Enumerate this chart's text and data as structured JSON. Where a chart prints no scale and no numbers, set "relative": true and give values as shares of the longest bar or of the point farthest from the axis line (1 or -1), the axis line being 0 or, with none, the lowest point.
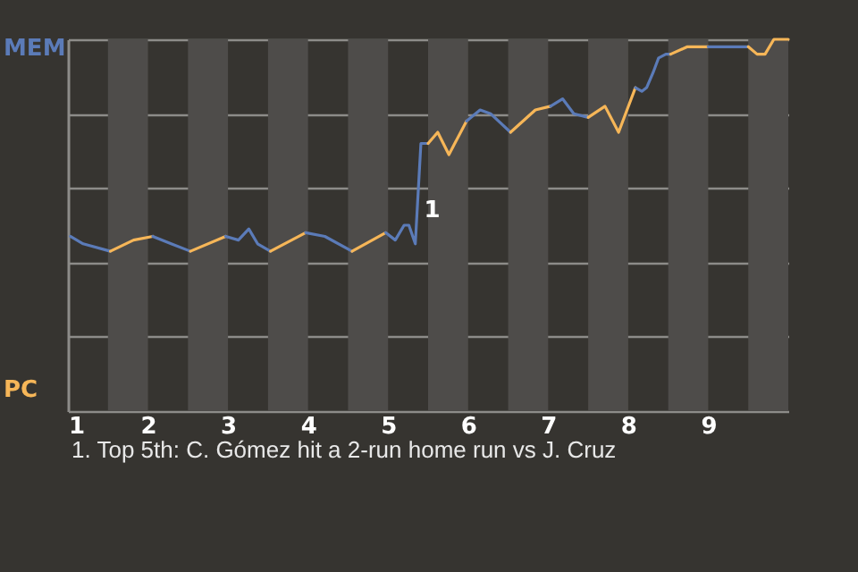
{
  "chart_data": {
    "type": "line",
    "series": [
      {
        "color": "#5b7bb8",
        "x": [
          1.03,
          1.19,
          1.53
        ],
        "values": [
          0.47,
          0.45,
          0.43
        ]
      },
      {
        "color": "#f6b658",
        "x": [
          1.53,
          1.82,
          2.06
        ],
        "values": [
          0.43,
          0.46,
          0.47
        ]
      },
      {
        "color": "#5b7bb8",
        "x": [
          2.06,
          2.29,
          2.53
        ],
        "values": [
          0.47,
          0.45,
          0.43
        ]
      },
      {
        "color": "#f6b658",
        "x": [
          2.53,
          2.97
        ],
        "values": [
          0.43,
          0.47
        ]
      },
      {
        "color": "#5b7bb8",
        "x": [
          2.97,
          3.13,
          3.26,
          3.37,
          3.53
        ],
        "values": [
          0.47,
          0.46,
          0.49,
          0.45,
          0.43
        ]
      },
      {
        "color": "#f6b658",
        "x": [
          3.53,
          3.97
        ],
        "values": [
          0.43,
          0.48
        ]
      },
      {
        "color": "#5b7bb8",
        "x": [
          3.97,
          4.21,
          4.55
        ],
        "values": [
          0.48,
          0.47,
          0.43
        ]
      },
      {
        "color": "#f6b658",
        "x": [
          4.55,
          4.97
        ],
        "values": [
          0.43,
          0.48
        ]
      },
      {
        "color": "#5b7bb8",
        "x": [
          4.97,
          5.09,
          5.2,
          5.26,
          5.34,
          5.41,
          5.5
        ],
        "values": [
          0.48,
          0.46,
          0.5,
          0.5,
          0.45,
          0.72,
          0.72
        ]
      },
      {
        "color": "#f6b658",
        "x": [
          5.5,
          5.62,
          5.76,
          5.98
        ],
        "values": [
          0.72,
          0.75,
          0.69,
          0.78
        ]
      },
      {
        "color": "#5b7bb8",
        "x": [
          5.98,
          6.15,
          6.28,
          6.53
        ],
        "values": [
          0.78,
          0.81,
          0.8,
          0.75
        ]
      },
      {
        "color": "#f6b658",
        "x": [
          6.53,
          6.84,
          7.03
        ],
        "values": [
          0.75,
          0.81,
          0.82
        ]
      },
      {
        "color": "#5b7bb8",
        "x": [
          7.03,
          7.18,
          7.32,
          7.5
        ],
        "values": [
          0.82,
          0.84,
          0.8,
          0.79
        ]
      },
      {
        "color": "#f6b658",
        "x": [
          7.5,
          7.71,
          7.88,
          8.09
        ],
        "values": [
          0.79,
          0.82,
          0.75,
          0.87
        ]
      },
      {
        "color": "#5b7bb8",
        "x": [
          8.09,
          8.17,
          8.23,
          8.31,
          8.38,
          8.47,
          8.53
        ],
        "values": [
          0.87,
          0.86,
          0.87,
          0.91,
          0.95,
          0.96,
          0.96
        ]
      },
      {
        "color": "#f6b658",
        "x": [
          8.53,
          8.74,
          9
        ],
        "values": [
          0.96,
          0.98,
          0.98
        ]
      },
      {
        "color": "#5b7bb8",
        "x": [
          9,
          9.5
        ],
        "values": [
          0.98,
          0.98
        ]
      },
      {
        "color": "#f6b658",
        "x": [
          9.5,
          9.61,
          9.71,
          9.82,
          10
        ],
        "values": [
          0.98,
          0.96,
          0.96,
          1,
          1
        ]
      }
    ],
    "relative": true,
    "xlim": [
      1,
      10
    ],
    "xticks": [
      1,
      2,
      3,
      4,
      5,
      6,
      7,
      8,
      9
    ],
    "grid": "y",
    "marker": "none",
    "bands": [
      {
        "axis": "x",
        "from": 1.5,
        "to": 2,
        "color": "#4e4c4a"
      },
      {
        "axis": "x",
        "from": 2.5,
        "to": 3,
        "color": "#4e4c4a"
      },
      {
        "axis": "x",
        "from": 3.5,
        "to": 4,
        "color": "#4e4c4a"
      },
      {
        "axis": "x",
        "from": 4.5,
        "to": 5,
        "color": "#4e4c4a"
      },
      {
        "axis": "x",
        "from": 5.5,
        "to": 6,
        "color": "#4e4c4a"
      },
      {
        "axis": "x",
        "from": 6.5,
        "to": 7,
        "color": "#4e4c4a"
      },
      {
        "axis": "x",
        "from": 7.5,
        "to": 8,
        "color": "#4e4c4a"
      },
      {
        "axis": "x",
        "from": 8.5,
        "to": 9,
        "color": "#4e4c4a"
      },
      {
        "axis": "x",
        "from": 9.5,
        "to": 10,
        "color": "#4e4c4a"
      }
    ],
    "annotations": [
      "MEM",
      "PC",
      {
        "text": "1",
        "x": 5.45,
        "y": 0.54
      },
      "1. Top 5th: C. Gómez hit a 2-run home run vs J. Cruz"
    ]
  }
}
